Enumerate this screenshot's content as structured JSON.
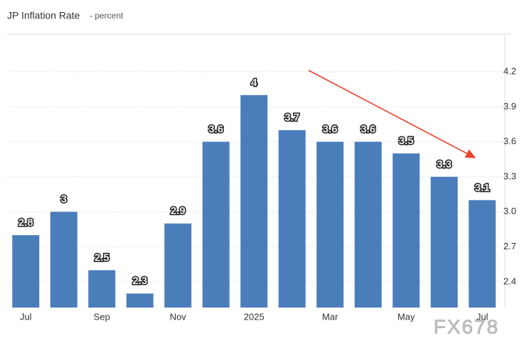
{
  "chart_data": {
    "type": "bar",
    "title": "JP Inflation Rate",
    "subtitle": "- percent",
    "categories": [
      "Jul",
      null,
      "Sep",
      null,
      "Nov",
      null,
      "2025",
      null,
      "Mar",
      null,
      "May",
      null,
      "Jul"
    ],
    "values": [
      2.8,
      3,
      2.5,
      2.3,
      2.9,
      3.6,
      4,
      3.7,
      3.6,
      3.6,
      3.5,
      3.3,
      3.1
    ],
    "color": "#4a7ebb",
    "ylim": [
      2.18,
      4.48
    ],
    "yticks": [
      2.4,
      2.7,
      {
        "value": 3,
        "label": "3.0"
      },
      3.3,
      3.6,
      3.9,
      4.2
    ],
    "grid": true,
    "watermark": "FX678"
  }
}
